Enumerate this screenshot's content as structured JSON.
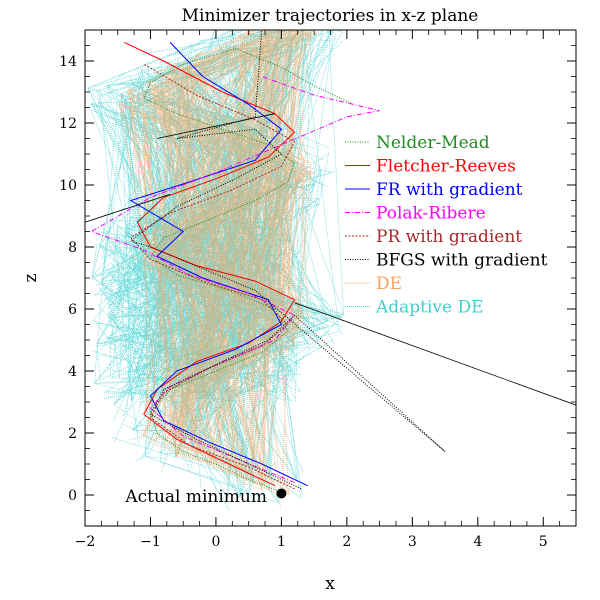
{
  "chart_data": {
    "type": "line",
    "title": "Minimizer trajectories in x-z plane",
    "xlabel": "x",
    "ylabel": "z",
    "xlim": [
      -2,
      5.5
    ],
    "ylim": [
      -1,
      15
    ],
    "xticks": [
      -2,
      -1,
      0,
      1,
      2,
      3,
      4,
      5
    ],
    "xtick_labels": [
      "−2",
      "−1",
      "0",
      "1",
      "2",
      "3",
      "4",
      "5"
    ],
    "yticks": [
      0,
      2,
      4,
      6,
      8,
      10,
      12,
      14
    ],
    "ytick_labels": [
      "0",
      "2",
      "4",
      "6",
      "8",
      "10",
      "12",
      "14"
    ],
    "legend_position": "center-right",
    "helix_path": {
      "x": [
        1.0,
        0.4,
        -0.3,
        -0.8,
        -0.8,
        -0.5,
        0.2,
        0.8,
        1.2,
        1.1,
        0.4,
        -0.5,
        -1.0,
        -0.9,
        -0.4,
        0.3,
        1.0,
        1.2,
        0.9,
        0.0,
        -0.8,
        -1.2,
        -1.0,
        -0.4,
        0.3,
        1.0,
        1.3,
        1.0,
        0.2,
        -0.6,
        -1.0
      ],
      "z": [
        0.0,
        0.6,
        1.3,
        2.0,
        2.8,
        3.5,
        4.2,
        4.8,
        5.4,
        6.0,
        6.5,
        7.0,
        7.6,
        8.3,
        8.9,
        9.5,
        10.0,
        10.6,
        11.2,
        11.7,
        12.2,
        12.7,
        13.2,
        13.8,
        14.3,
        14.9,
        15.0,
        15.0,
        15.0,
        15.0,
        15.0
      ]
    },
    "series": [
      {
        "name": "Nelder-Mead",
        "color": "#228b22",
        "dash": "1,1.5",
        "width": 1,
        "x": [
          1.0,
          0.6,
          0.1,
          -0.5,
          -0.9,
          -1.0,
          -0.7,
          0.0,
          0.7,
          1.1,
          0.9,
          0.2,
          -0.6,
          -1.0,
          -0.8,
          -0.2,
          0.6,
          1.1,
          1.2,
          0.8,
          0.1,
          -0.6,
          -1.1,
          -1.0,
          -0.5,
          0.3,
          1.0,
          1.5,
          2.1
        ],
        "z": [
          0.1,
          0.4,
          0.9,
          1.4,
          2.0,
          2.7,
          3.4,
          4.0,
          4.6,
          5.3,
          6.0,
          6.6,
          7.1,
          7.7,
          8.3,
          8.8,
          9.5,
          10.1,
          10.7,
          11.3,
          11.8,
          12.3,
          12.8,
          13.3,
          13.9,
          14.4,
          13.8,
          13.2,
          12.6
        ]
      },
      {
        "name": "Fletcher-Reeves",
        "color": "#ff0000",
        "dash": "",
        "width": 1,
        "x": [
          0.9,
          0.2,
          -0.6,
          -1.1,
          -0.9,
          -0.3,
          0.5,
          1.0,
          1.2,
          0.6,
          -0.3,
          -1.0,
          -1.2,
          -0.8,
          0.0,
          0.8,
          1.2,
          0.9,
          0.1,
          -0.8,
          -1.4
        ],
        "z": [
          0.3,
          1.0,
          1.8,
          2.6,
          3.4,
          4.3,
          4.9,
          5.6,
          6.3,
          6.9,
          7.4,
          8.0,
          8.8,
          9.6,
          10.2,
          10.9,
          11.7,
          12.3,
          13.0,
          14.0,
          14.6
        ]
      },
      {
        "name": "FR with gradient",
        "color": "#0000ff",
        "dash": "",
        "width": 1,
        "x": [
          1.4,
          0.7,
          -0.1,
          -0.8,
          -1.0,
          -0.6,
          0.3,
          1.0,
          0.8,
          -0.2,
          -0.9,
          -0.5,
          -1.3,
          -0.4,
          0.6,
          1.0,
          0.5,
          -0.2,
          -0.7
        ],
        "z": [
          0.3,
          1.0,
          1.7,
          2.4,
          3.2,
          4.0,
          4.7,
          5.5,
          6.3,
          7.0,
          7.7,
          8.5,
          9.5,
          10.1,
          10.8,
          11.8,
          12.6,
          13.5,
          14.6
        ]
      },
      {
        "name": "Polak-Ribere",
        "color": "#ff00ff",
        "dash": "5,2,1,2",
        "width": 1,
        "x": [
          1.2,
          0.4,
          -0.5,
          -1.0,
          -0.7,
          0.1,
          0.9,
          1.2,
          0.5,
          -0.4,
          -1.1,
          -1.9,
          -1.0,
          0.0,
          1.0,
          2.0,
          2.5,
          1.5,
          0.7
        ],
        "z": [
          0.4,
          1.1,
          1.9,
          2.8,
          3.5,
          4.3,
          5.0,
          5.8,
          6.5,
          7.1,
          7.9,
          8.5,
          9.6,
          10.4,
          11.3,
          12.2,
          12.4,
          12.9,
          13.5
        ]
      },
      {
        "name": "PR with gradient",
        "color": "#a52a2a",
        "dash": "2,1.5",
        "width": 1,
        "x": [
          1.2,
          0.5,
          -0.4,
          -1.0,
          -0.8,
          -0.1,
          0.7,
          1.1,
          0.7,
          -0.2,
          -1.0,
          -1.3,
          -0.7,
          0.2,
          1.0,
          1.2,
          0.6,
          -0.3,
          -1.1
        ],
        "z": [
          0.2,
          0.9,
          1.6,
          2.5,
          3.3,
          4.1,
          4.8,
          5.5,
          6.3,
          6.9,
          7.6,
          8.3,
          9.1,
          9.8,
          10.6,
          11.4,
          12.1,
          12.9,
          13.9
        ]
      },
      {
        "name": "BFGS with gradient",
        "color": "#000000",
        "dash": "1,1.5",
        "width": 1,
        "x": [
          1.3,
          0.5,
          -0.3,
          -1.0,
          -0.8,
          0.0,
          0.8,
          1.2,
          3.5,
          0.6,
          -0.2,
          -1.0,
          -1.3,
          -0.6,
          0.3,
          1.0,
          0.6,
          -0.6,
          0.6,
          0.7
        ],
        "z": [
          0.2,
          1.0,
          1.8,
          2.6,
          3.4,
          4.2,
          5.0,
          5.8,
          1.4,
          6.6,
          7.3,
          8.0,
          8.2,
          9.3,
          10.2,
          11.0,
          11.8,
          11.5,
          12.2,
          15.0
        ]
      },
      {
        "name": "DE",
        "color": "#f4a460",
        "dash": "1,1",
        "width": 1,
        "scatter": true
      },
      {
        "name": "Adaptive DE",
        "color": "#40d0d0",
        "dash": "1,1",
        "width": 1,
        "scatter": true
      }
    ],
    "extra_lines": [
      {
        "x": [
          1.2,
          5.5
        ],
        "z": [
          6.2,
          2.9
        ]
      },
      {
        "x": [
          -2.0,
          -0.7
        ],
        "z": [
          8.8,
          9.7
        ]
      },
      {
        "x": [
          -0.9,
          0.9
        ],
        "z": [
          11.5,
          12.3
        ]
      }
    ],
    "annotation": {
      "text": "Actual minimum",
      "x": 1.0,
      "z": 0.05
    }
  }
}
